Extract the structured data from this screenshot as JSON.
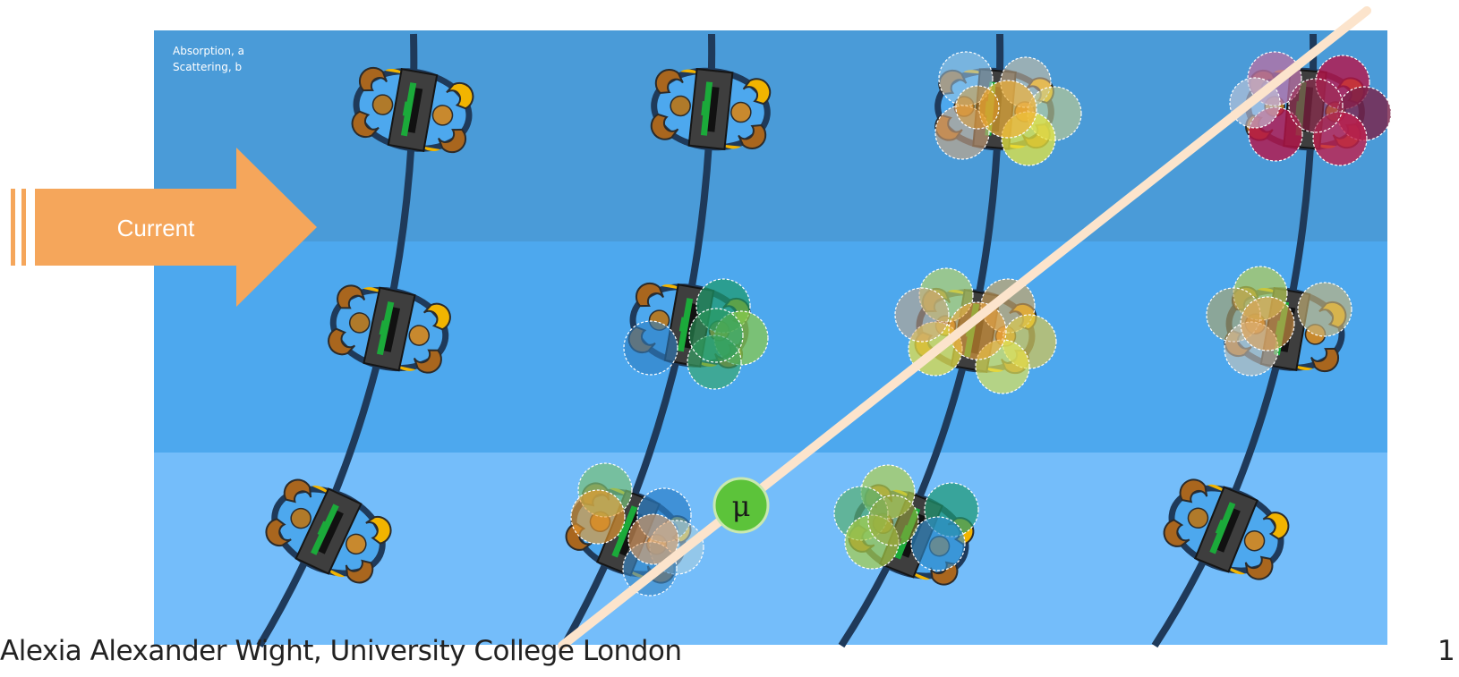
{
  "legend": {
    "absorption": "Absorption, a",
    "scattering": "Scattering, b"
  },
  "arrow": {
    "label": "Current"
  },
  "marker": {
    "label": "μ"
  },
  "footer": {
    "author": "Alexia Alexander Wight, University College London",
    "page": "1"
  },
  "colors": {
    "band_top": "#4A9BD8",
    "band_mid": "#4DA8EE",
    "band_bottom": "#74BDFA",
    "arrow": "#F5A65B",
    "cable": "#1F3A5A",
    "beam": "#FCE4CC",
    "sensor_green": "#1BAA3A",
    "marker_green": "#5CC33A"
  },
  "icons": [
    "sensor-device-icon",
    "cable-line",
    "light-beam"
  ]
}
